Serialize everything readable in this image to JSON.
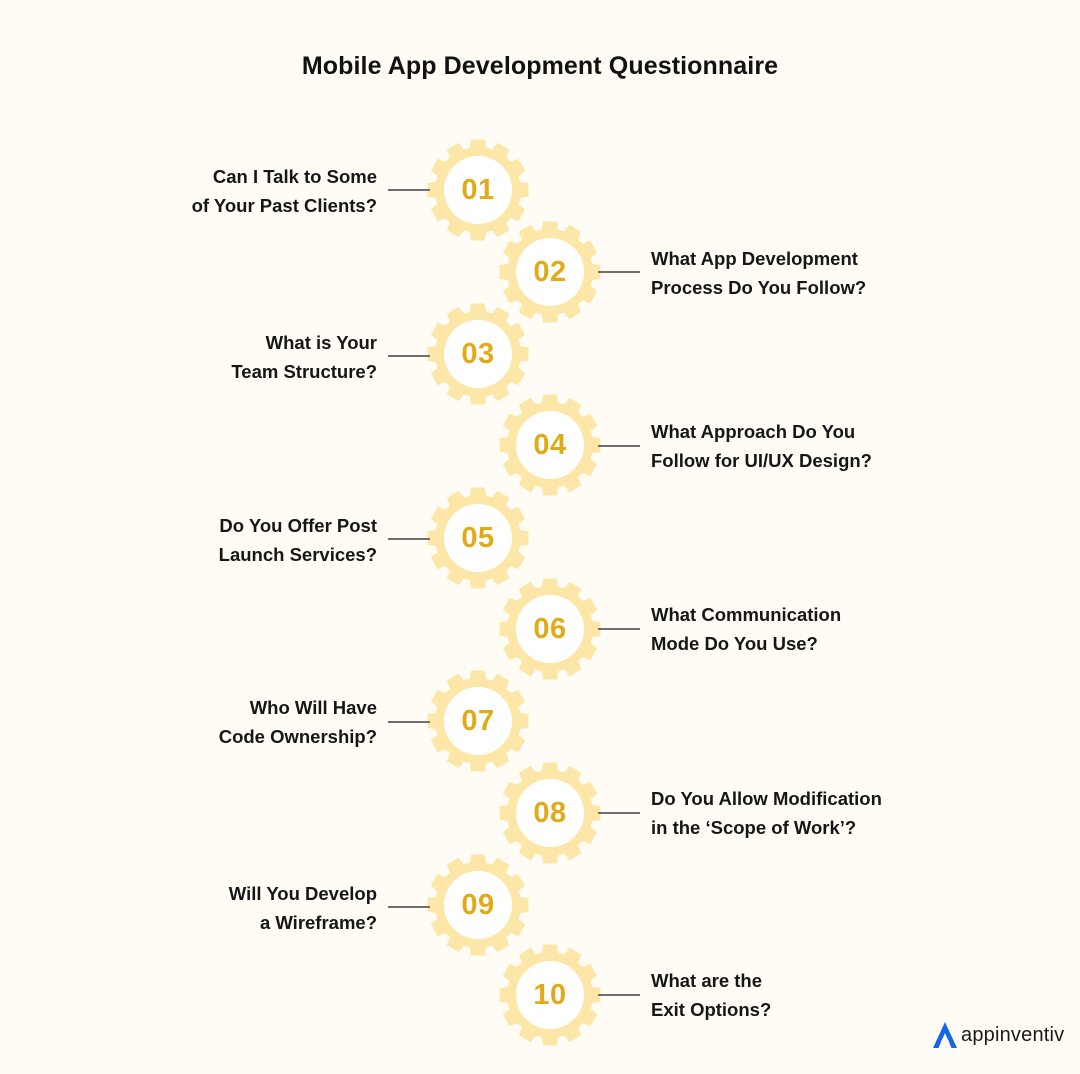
{
  "title": "Mobile App Development Questionnaire",
  "colors": {
    "background": "#fefcf5",
    "gear": "#fde7a8",
    "gear_center": "#ffffff",
    "number": "#e3aa18",
    "connector": "#6e6e6e",
    "brand_icon": "#1565e8"
  },
  "items": [
    {
      "number": "01",
      "lines": [
        "Can I Talk to Some",
        "of Your Past Clients?"
      ]
    },
    {
      "number": "02",
      "lines": [
        "What App Development",
        "Process Do You Follow?"
      ]
    },
    {
      "number": "03",
      "lines": [
        "What is Your",
        "Team Structure?"
      ]
    },
    {
      "number": "04",
      "lines": [
        "What Approach Do You",
        "Follow for UI/UX Design?"
      ]
    },
    {
      "number": "05",
      "lines": [
        "Do You Offer Post",
        "Launch Services?"
      ]
    },
    {
      "number": "06",
      "lines": [
        "What Communication",
        "Mode Do You Use?"
      ]
    },
    {
      "number": "07",
      "lines": [
        "Who Will Have",
        "Code Ownership?"
      ]
    },
    {
      "number": "08",
      "lines": [
        "Do You Allow Modification",
        "in the ‘Scope of Work’?"
      ]
    },
    {
      "number": "09",
      "lines": [
        "Will You Develop",
        "a Wireframe?"
      ]
    },
    {
      "number": "10",
      "lines": [
        "What are the",
        "Exit Options?"
      ]
    }
  ],
  "brand": {
    "name": "appinventiv",
    "icon": "appinventiv-logo-icon"
  }
}
